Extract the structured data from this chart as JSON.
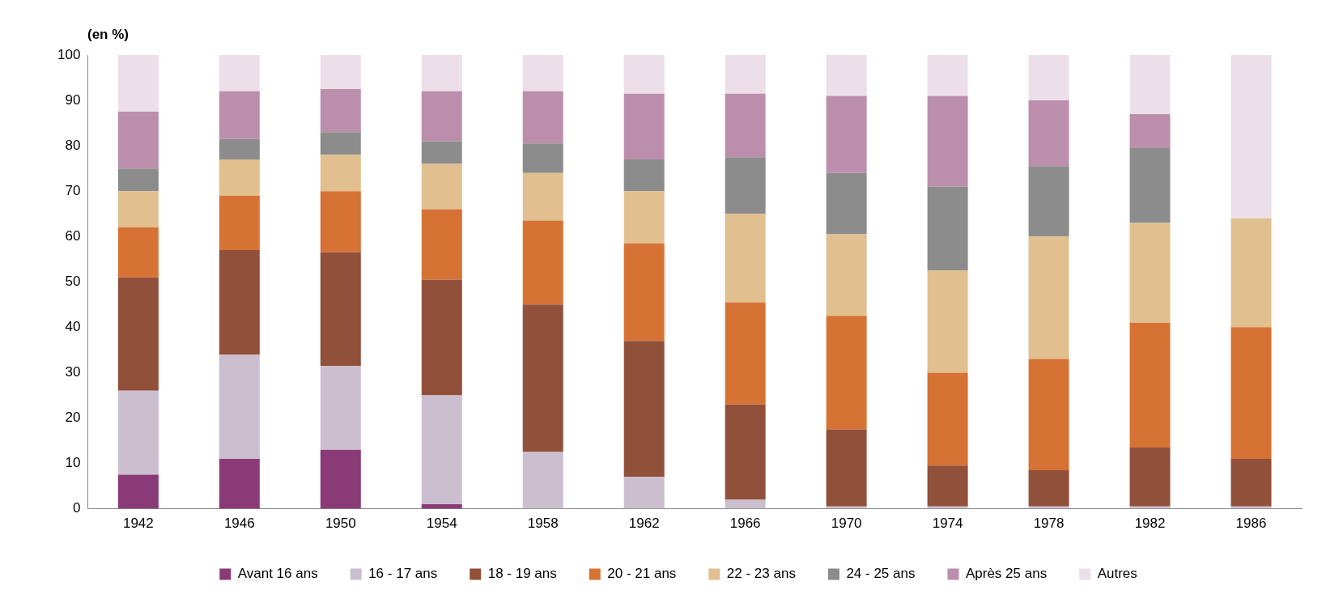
{
  "chart_data": {
    "type": "bar",
    "stacked": true,
    "ylabel": "(en %)",
    "categories": [
      "1942",
      "1946",
      "1950",
      "1954",
      "1958",
      "1962",
      "1966",
      "1970",
      "1974",
      "1978",
      "1982",
      "1986"
    ],
    "ylim": [
      0,
      100
    ],
    "yticks": [
      0,
      10,
      20,
      30,
      40,
      50,
      60,
      70,
      80,
      90,
      100
    ],
    "grid": false,
    "legend": "bottom",
    "series": [
      {
        "name": "Avant 16 ans",
        "color": "#8b3a78",
        "values": [
          7.5,
          11,
          13,
          1,
          0,
          0,
          0,
          0,
          0,
          0,
          0,
          0
        ]
      },
      {
        "name": "16 - 17 ans",
        "color": "#cbbfcf",
        "values": [
          18.5,
          23,
          18.5,
          24,
          12.5,
          7,
          2,
          0.5,
          0.5,
          0.5,
          0.5,
          0.5
        ]
      },
      {
        "name": "18 - 19 ans",
        "color": "#91503a",
        "values": [
          25,
          23,
          25,
          25.5,
          32.5,
          30,
          21,
          17,
          9,
          8,
          13,
          10.5
        ]
      },
      {
        "name": "20 - 21 ans",
        "color": "#d77235",
        "values": [
          11,
          12,
          13.5,
          15.5,
          18.5,
          21.5,
          22.5,
          25,
          20.5,
          24.5,
          27.5,
          29
        ]
      },
      {
        "name": "22 - 23 ans",
        "color": "#e1bf8f",
        "values": [
          8,
          8,
          8,
          10,
          10.5,
          11.5,
          19.5,
          18,
          22.5,
          27,
          22,
          24
        ]
      },
      {
        "name": "24 - 25 ans",
        "color": "#8c8c8c",
        "values": [
          5,
          4.5,
          5,
          5,
          6.5,
          7,
          12.5,
          13.5,
          18.5,
          15.5,
          16.5,
          0
        ]
      },
      {
        "name": "Après 25 ans",
        "color": "#bb8fab",
        "values": [
          12.5,
          10.5,
          9.5,
          11,
          11.5,
          14.5,
          14,
          17,
          20,
          14.5,
          7.5,
          0
        ]
      },
      {
        "name": "Autres",
        "color": "#ecdfea",
        "values": [
          12.5,
          8,
          7.5,
          8,
          8,
          8.5,
          8.5,
          9,
          9,
          10,
          13,
          36
        ]
      }
    ]
  }
}
